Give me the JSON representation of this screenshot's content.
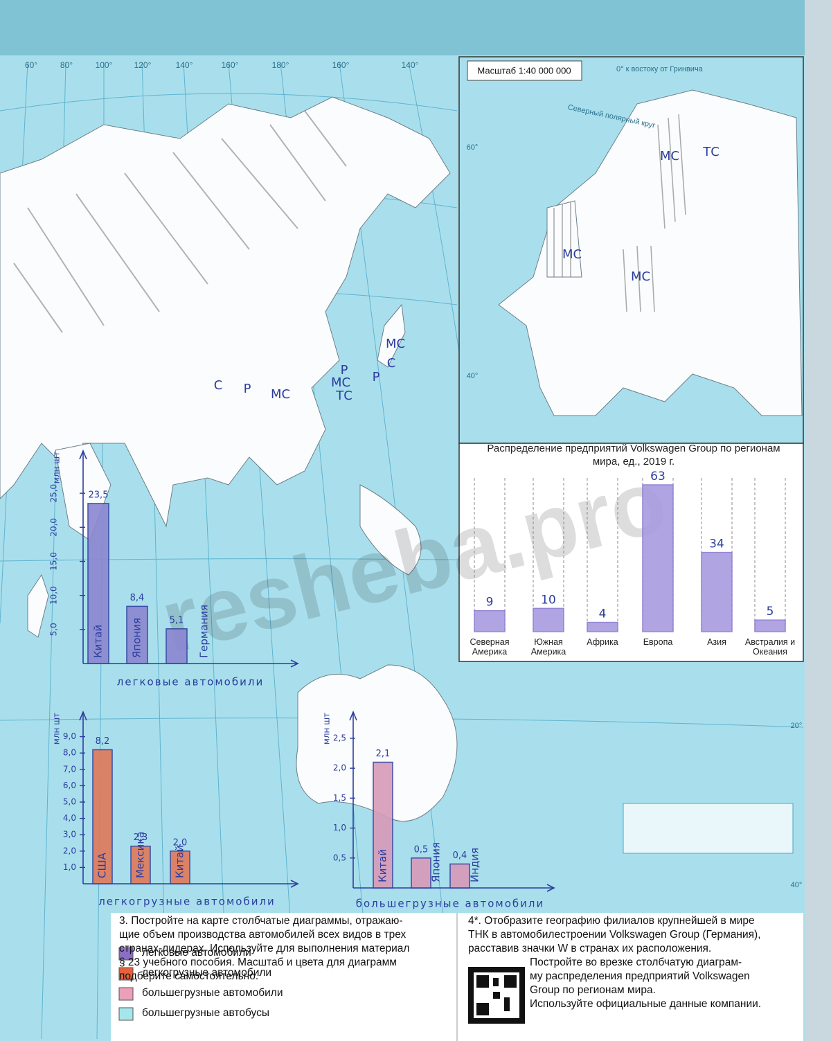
{
  "map": {
    "scale": "Масштаб 1:40 000 000",
    "polar_circle": "Северный полярный круг",
    "meridian": "0° к востоку от Гринвича",
    "lon_labels": [
      "60°",
      "80°",
      "100°",
      "120°",
      "140°",
      "160°",
      "180°",
      "160°",
      "140°"
    ],
    "inset_labels": [
      "20°",
      "40°",
      "60°",
      "40°"
    ],
    "marks": [
      "С",
      "Р",
      "МС",
      "Р",
      "МС",
      "ТС",
      "Р",
      "С",
      "МС",
      "МС",
      "ТС",
      "МС",
      "МС"
    ]
  },
  "watermark": "resheba.pro",
  "chart_data": [
    {
      "type": "bar",
      "title": "Распределение предприятий Volkswagen Group по регионам мира, ед., 2019 г.",
      "categories": [
        "Северная Америка",
        "Южная Америка",
        "Африка",
        "Европа",
        "Азия",
        "Австралия и Океания"
      ],
      "values": [
        9,
        10,
        4,
        63,
        34,
        5
      ],
      "color": "#a99be0"
    },
    {
      "type": "bar",
      "ylabel": "млн шт",
      "xlabel": "легковые автомобили",
      "categories": [
        "Китай",
        "Япония",
        "Германия"
      ],
      "values": [
        23.5,
        8.4,
        5.1
      ],
      "value_labels": [
        "23,5",
        "8,4",
        "5,1"
      ],
      "color": "#8c86d0",
      "ylim": [
        0,
        30
      ],
      "yticks": [
        {
          "value": 5,
          "label": "5,0"
        },
        {
          "value": 10,
          "label": "10,0"
        },
        {
          "value": 15,
          "label": "15,0"
        },
        {
          "value": 20,
          "label": "20,0"
        },
        {
          "value": 25,
          "label": "25,0"
        }
      ]
    },
    {
      "type": "bar",
      "ylabel": "млн шт",
      "xlabel": "легкогрузные автомобили",
      "categories": [
        "США",
        "Мексика",
        "Китай"
      ],
      "values": [
        8.2,
        2.3,
        2.0
      ],
      "value_labels": [
        "8,2",
        "2,3",
        "2,0"
      ],
      "color": "#e0785a",
      "ylim": [
        0,
        10
      ],
      "yticks": [
        {
          "value": 1,
          "label": "1,0"
        },
        {
          "value": 2,
          "label": "2,0"
        },
        {
          "value": 3,
          "label": "3,0"
        },
        {
          "value": 4,
          "label": "4,0"
        },
        {
          "value": 5,
          "label": "5,0"
        },
        {
          "value": 6,
          "label": "6,0"
        },
        {
          "value": 7,
          "label": "7,0"
        },
        {
          "value": 8,
          "label": "8,0"
        },
        {
          "value": 9,
          "label": "9,0"
        }
      ]
    },
    {
      "type": "bar",
      "ylabel": "млн шт",
      "xlabel": "большегрузные автомобили",
      "categories": [
        "Китай",
        "Япония",
        "Индия"
      ],
      "values": [
        2.1,
        0.5,
        0.4
      ],
      "value_labels": [
        "2,1",
        "0,5",
        "0,4"
      ],
      "color": "#d79ab8",
      "ylim": [
        0,
        2.8
      ],
      "yticks": [
        {
          "value": 0.5,
          "label": "0,5"
        },
        {
          "value": 1,
          "label": "1,0"
        },
        {
          "value": 1.5,
          "label": "1,5"
        },
        {
          "value": 2,
          "label": "2,0"
        },
        {
          "value": 2.5,
          "label": "2,5"
        }
      ]
    }
  ],
  "task3": {
    "lines": [
      "3. Постройте на карте столбчатые диаграммы, отражаю-",
      "щие объем производства автомобилей всех видов в трех",
      "странах-лидерах. Используйте для выполнения материал",
      "§ 23 учебного пособия. Масштаб и цвета для диаграмм",
      "подберите самостоятельно."
    ]
  },
  "legend": {
    "items": [
      {
        "label": "легковые автомобили",
        "color": "#8a6fc4"
      },
      {
        "label": "легкогрузные автомобили",
        "color": "#e8603c"
      },
      {
        "label": "большегрузные автомобили",
        "color": "#eaa0b8"
      },
      {
        "label": "большегрузные автобусы",
        "color": "#a5e6ea"
      }
    ]
  },
  "task4": {
    "lines": [
      "4*. Отобразите географию филиалов крупнейшей в мире",
      "ТНК в автомобилестроении Volkswagen Group (Германия),",
      "расставив значки W в странах их расположения."
    ],
    "lines2": [
      "Постройте во врезке столбчатую диаграм-",
      "му распределения предприятий Volkswagen",
      "Group по регионам мира.",
      "Используйте официальные данные компании."
    ]
  }
}
